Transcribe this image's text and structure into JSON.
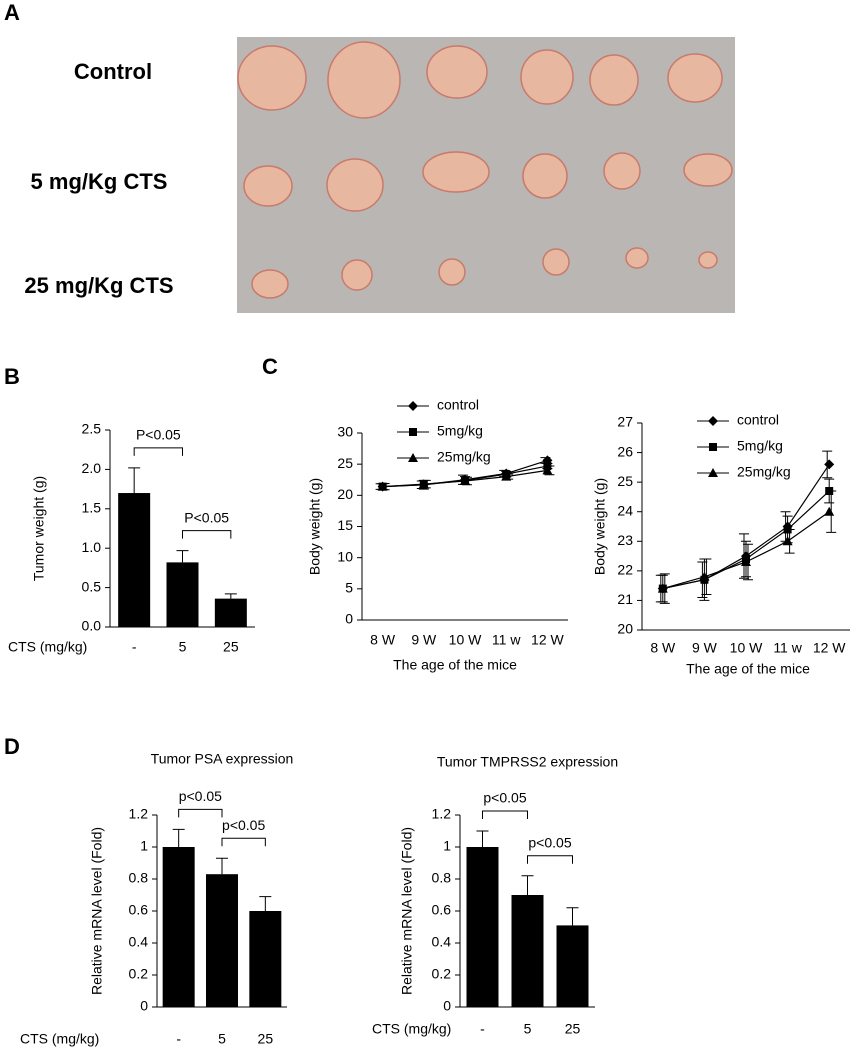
{
  "panels": {
    "a": "A",
    "b": "B",
    "c": "C",
    "d": "D"
  },
  "photo_labels": [
    "Control",
    "5 mg/Kg CTS",
    "25 mg/Kg CTS"
  ],
  "chart_data": [
    {
      "type": "bar",
      "ylabel": "Tumor weight (g)",
      "xlabel": "CTS (mg/kg)",
      "categories": [
        "-",
        "5",
        "25"
      ],
      "values": [
        1.7,
        0.82,
        0.36
      ],
      "errors": [
        0.32,
        0.15,
        0.06
      ],
      "color": "#000000",
      "ylim": [
        0,
        2.5
      ],
      "yticks": [
        {
          "value": 0,
          "label": "0.0"
        },
        0.5,
        {
          "value": 1,
          "label": "1.0"
        },
        1.5,
        {
          "value": 2,
          "label": "2.0"
        },
        2.5
      ],
      "annotations": [
        "P<0.05",
        "P<0.05"
      ]
    },
    {
      "type": "line",
      "ylabel": "Body weight (g)",
      "xlabel": "The age of the mice",
      "categories": [
        "8 W",
        "9 W",
        "10 W",
        "11 w",
        "12 W"
      ],
      "legend": "upper left",
      "series": [
        {
          "name": "control",
          "color": "#000000",
          "marker": "diamond",
          "values": [
            21.4,
            21.7,
            22.5,
            23.5,
            25.6
          ],
          "errors": [
            0.45,
            0.6,
            0.75,
            0.5,
            0.45
          ]
        },
        {
          "name": "5mg/kg",
          "color": "#000000",
          "marker": "square",
          "values": [
            21.4,
            21.7,
            22.4,
            23.4,
            24.7
          ],
          "errors": [
            0.45,
            0.7,
            0.6,
            0.45,
            0.4
          ]
        },
        {
          "name": "25mg/kg",
          "color": "#000000",
          "marker": "triangle",
          "values": [
            21.4,
            21.8,
            22.3,
            23.0,
            24.0
          ],
          "errors": [
            0.5,
            0.6,
            0.6,
            0.4,
            0.7
          ]
        }
      ],
      "ylim": [
        0,
        30
      ],
      "yticks": [
        0,
        5,
        10,
        15,
        20,
        25,
        30
      ]
    },
    {
      "type": "line",
      "ylabel": "Body weight (g)",
      "xlabel": "The age of the mice",
      "categories": [
        "8 W",
        "9 W",
        "10 W",
        "11 w",
        "12 W"
      ],
      "legend": "upper left",
      "series": [
        {
          "name": "control",
          "color": "#000000",
          "marker": "diamond",
          "values": [
            21.4,
            21.7,
            22.5,
            23.5,
            25.6
          ],
          "errors": [
            0.45,
            0.6,
            0.75,
            0.5,
            0.45
          ]
        },
        {
          "name": "5mg/kg",
          "color": "#000000",
          "marker": "square",
          "values": [
            21.4,
            21.7,
            22.4,
            23.4,
            24.7
          ],
          "errors": [
            0.45,
            0.7,
            0.6,
            0.45,
            0.4
          ]
        },
        {
          "name": "25mg/kg",
          "color": "#000000",
          "marker": "triangle",
          "values": [
            21.4,
            21.8,
            22.3,
            23.0,
            24.0
          ],
          "errors": [
            0.5,
            0.6,
            0.6,
            0.4,
            0.7
          ]
        }
      ],
      "ylim": [
        20,
        27
      ],
      "yticks": [
        20,
        21,
        22,
        23,
        24,
        25,
        26,
        27
      ]
    },
    {
      "type": "bar",
      "title": "Tumor PSA expression",
      "ylabel": "Relative mRNA level (Fold)",
      "xlabel": "CTS (mg/kg)",
      "categories": [
        "-",
        "5",
        "25"
      ],
      "values": [
        1,
        0.83,
        0.6
      ],
      "errors": [
        0.11,
        0.1,
        0.09
      ],
      "color": "#000000",
      "ylim": [
        0,
        1.2
      ],
      "yticks": [
        0,
        0.2,
        0.4,
        0.6,
        0.8,
        1,
        1.2
      ],
      "annotations": [
        "p<0.05",
        "p<0.05"
      ]
    },
    {
      "type": "bar",
      "title": "Tumor TMPRSS2 expression",
      "ylabel": "Relative mRNA level (Fold)",
      "xlabel": "CTS (mg/kg)",
      "categories": [
        "-",
        "5",
        "25"
      ],
      "values": [
        1,
        0.7,
        0.51
      ],
      "errors": [
        0.1,
        0.12,
        0.11
      ],
      "color": "#000000",
      "ylim": [
        0,
        1.2
      ],
      "yticks": [
        0,
        0.2,
        0.4,
        0.6,
        0.8,
        1,
        1.2
      ],
      "annotations": [
        "p<0.05",
        "p<0.05"
      ]
    }
  ]
}
